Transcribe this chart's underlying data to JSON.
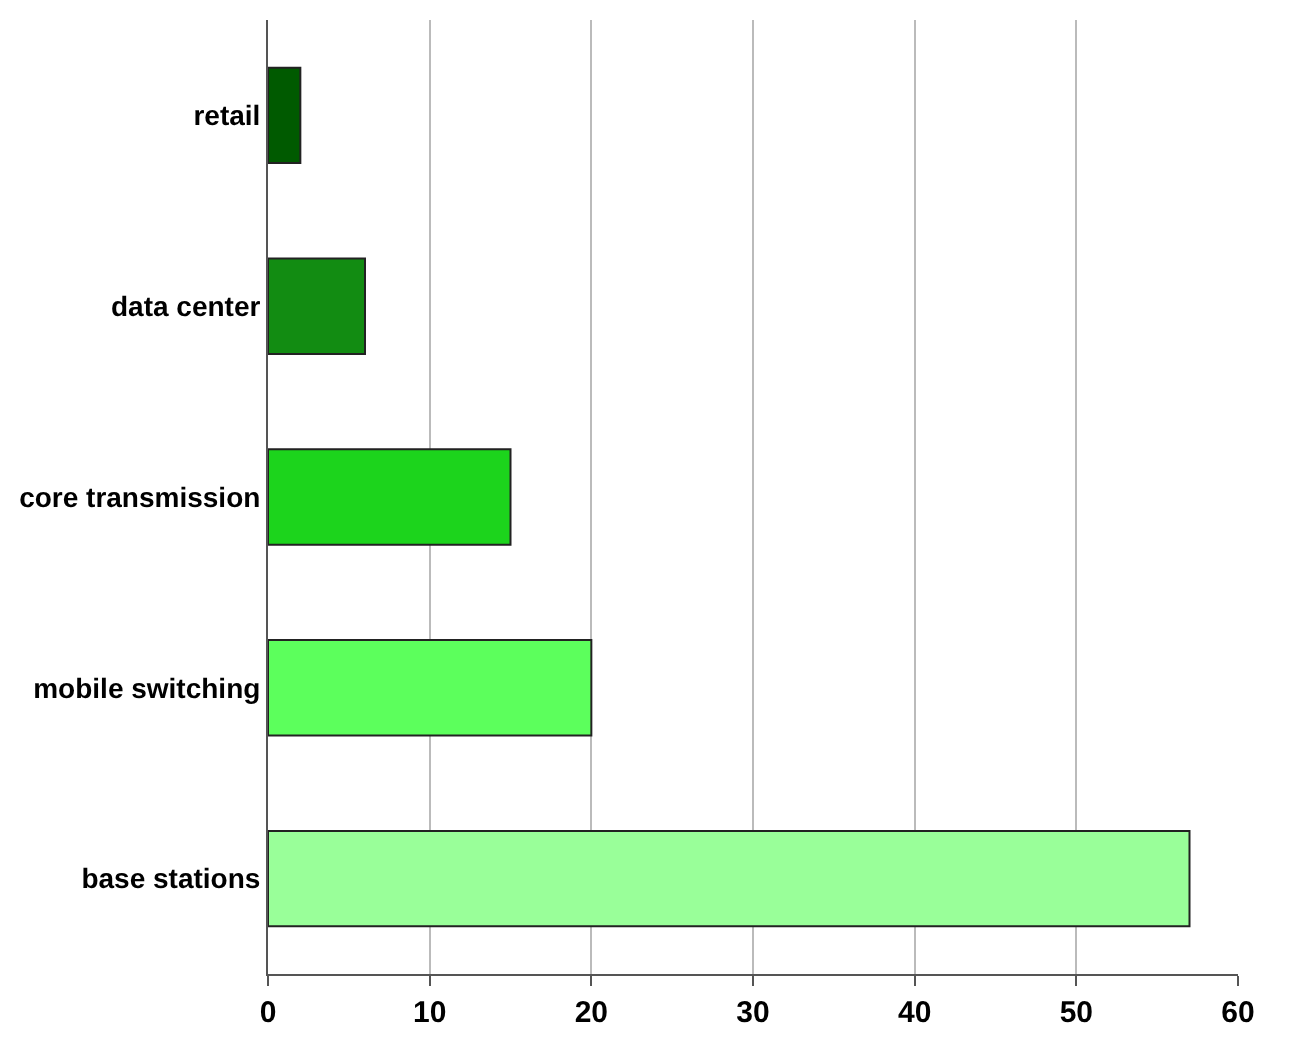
{
  "chart_data": {
    "type": "bar",
    "orientation": "horizontal",
    "categories": [
      "retail",
      "data center",
      "core transmission",
      "mobile switching",
      "base stations"
    ],
    "values": [
      2,
      6,
      15,
      20,
      57
    ],
    "colors": [
      "#005a00",
      "#128c12",
      "#1cd41c",
      "#5cff5c",
      "#99ff99"
    ],
    "xlim": [
      0,
      60
    ],
    "xticks": [
      0,
      10,
      20,
      30,
      40,
      50,
      60
    ],
    "grid": "x"
  }
}
